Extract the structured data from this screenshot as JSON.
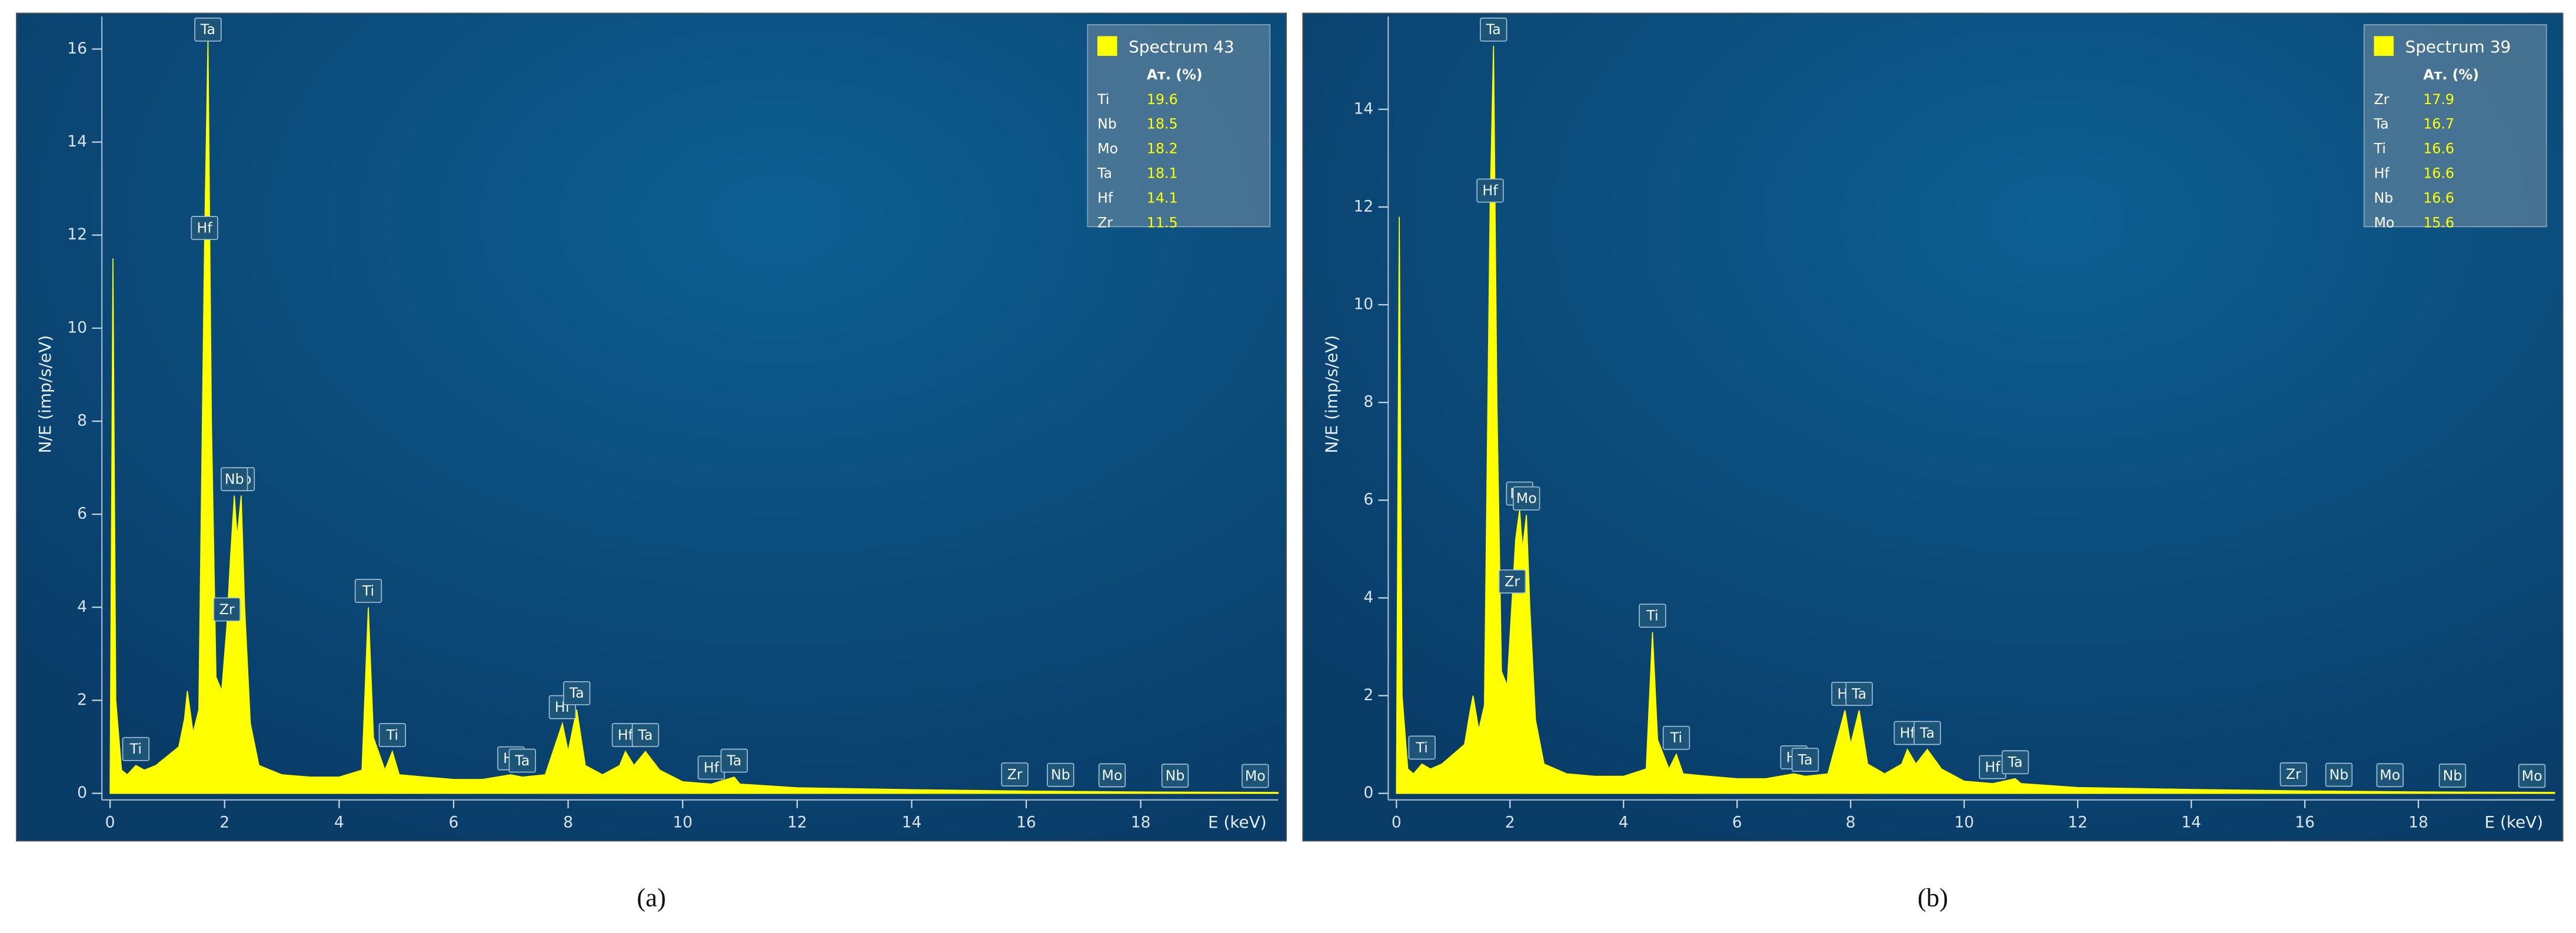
{
  "chart_data": [
    {
      "type": "area",
      "caption": "(a)",
      "y_label": "N/E (imp/s/eV)",
      "x_label": "E (keV)",
      "xlim": [
        0,
        20.4
      ],
      "ylim": [
        0,
        16.7
      ],
      "xticks": [
        0,
        2,
        4,
        6,
        8,
        10,
        12,
        14,
        16,
        18
      ],
      "yticks": [
        0,
        2,
        4,
        6,
        8,
        10,
        12,
        14,
        16
      ],
      "x": [
        0,
        0.05,
        0.1,
        0.2,
        0.3,
        0.45,
        0.6,
        0.8,
        1.0,
        1.2,
        1.3,
        1.35,
        1.45,
        1.55,
        1.65,
        1.71,
        1.77,
        1.85,
        1.95,
        2.04,
        2.1,
        2.17,
        2.22,
        2.29,
        2.35,
        2.45,
        2.6,
        3,
        3.5,
        4,
        4.4,
        4.51,
        4.6,
        4.8,
        4.93,
        5.05,
        5.5,
        6,
        6.5,
        7,
        7.2,
        7.6,
        7.9,
        8.0,
        8.15,
        8.3,
        8.6,
        8.9,
        9.0,
        9.15,
        9.35,
        9.6,
        10,
        10.5,
        10.9,
        11,
        12,
        13,
        14,
        16,
        18,
        20.4
      ],
      "series": [
        {
          "name": "Spectrum 43",
          "color": "#ffff00",
          "values": [
            0,
            11.5,
            2,
            0.5,
            0.4,
            0.6,
            0.5,
            0.6,
            0.8,
            1.0,
            1.6,
            2.2,
            1.3,
            1.8,
            11.8,
            16.2,
            8,
            2.5,
            2.2,
            3.6,
            5,
            6.4,
            5.5,
            6.4,
            4,
            1.5,
            0.6,
            0.4,
            0.35,
            0.35,
            0.5,
            4.0,
            1.2,
            0.5,
            0.9,
            0.4,
            0.35,
            0.3,
            0.3,
            0.4,
            0.35,
            0.4,
            1.5,
            0.9,
            1.8,
            0.6,
            0.4,
            0.6,
            0.9,
            0.6,
            0.9,
            0.5,
            0.25,
            0.2,
            0.35,
            0.2,
            0.12,
            0.1,
            0.08,
            0.05,
            0.03,
            0.02
          ]
        }
      ],
      "annotations": [
        {
          "text": "Ti",
          "x": 0.45
        },
        {
          "text": "Ta",
          "x": 1.71
        },
        {
          "text": "Hf",
          "x": 1.65
        },
        {
          "text": "Mo",
          "x": 2.29
        },
        {
          "text": "Nb",
          "x": 2.17
        },
        {
          "text": "Zr",
          "x": 2.04
        },
        {
          "text": "Ti",
          "x": 4.51
        },
        {
          "text": "Ti",
          "x": 4.93
        },
        {
          "text": "Hf",
          "x": 7.0
        },
        {
          "text": "Ta",
          "x": 7.2
        },
        {
          "text": "Hf",
          "x": 7.9
        },
        {
          "text": "Ta",
          "x": 8.15
        },
        {
          "text": "Hf",
          "x": 9.0
        },
        {
          "text": "Ta",
          "x": 9.35
        },
        {
          "text": "Hf",
          "x": 10.5
        },
        {
          "text": "Ta",
          "x": 10.9
        },
        {
          "text": "Zr",
          "x": 15.8
        },
        {
          "text": "Nb",
          "x": 16.6
        },
        {
          "text": "Mo",
          "x": 17.5
        },
        {
          "text": "Nb",
          "x": 18.6
        },
        {
          "text": "Mo",
          "x": 20.0
        }
      ],
      "legend_table": {
        "header": "Aт. (%)",
        "rows": [
          [
            "Ti",
            "19.6"
          ],
          [
            "Nb",
            "18.5"
          ],
          [
            "Mo",
            "18.2"
          ],
          [
            "Ta",
            "18.1"
          ],
          [
            "Hf",
            "14.1"
          ],
          [
            "Zr",
            "11.5"
          ]
        ]
      }
    },
    {
      "type": "area",
      "caption": "(b)",
      "y_label": "N/E (imp/s/eV)",
      "x_label": "E (keV)",
      "xlim": [
        0,
        20.4
      ],
      "ylim": [
        0,
        15.9
      ],
      "xticks": [
        0,
        2,
        4,
        6,
        8,
        10,
        12,
        14,
        16,
        18
      ],
      "yticks": [
        0,
        2,
        4,
        6,
        8,
        10,
        12,
        14
      ],
      "x": [
        0,
        0.05,
        0.1,
        0.2,
        0.3,
        0.45,
        0.6,
        0.8,
        1.0,
        1.2,
        1.3,
        1.35,
        1.45,
        1.55,
        1.65,
        1.71,
        1.77,
        1.85,
        1.95,
        2.04,
        2.1,
        2.17,
        2.22,
        2.29,
        2.35,
        2.45,
        2.6,
        3,
        3.5,
        4,
        4.4,
        4.51,
        4.6,
        4.8,
        4.93,
        5.05,
        5.5,
        6,
        6.5,
        7,
        7.2,
        7.6,
        7.9,
        8.0,
        8.15,
        8.3,
        8.6,
        8.9,
        9.0,
        9.15,
        9.35,
        9.6,
        10,
        10.5,
        10.9,
        11,
        12,
        13,
        14,
        16,
        18,
        20.4
      ],
      "series": [
        {
          "name": "Spectrum 39",
          "color": "#ffff00",
          "values": [
            0,
            11.8,
            2,
            0.5,
            0.4,
            0.6,
            0.5,
            0.6,
            0.8,
            1.0,
            1.7,
            2.0,
            1.3,
            1.8,
            12.0,
            15.3,
            8,
            2.5,
            2.2,
            4.0,
            5.2,
            5.8,
            5.0,
            5.7,
            3.8,
            1.5,
            0.6,
            0.4,
            0.35,
            0.35,
            0.5,
            3.3,
            1.1,
            0.5,
            0.8,
            0.4,
            0.35,
            0.3,
            0.3,
            0.4,
            0.35,
            0.4,
            1.7,
            1.0,
            1.7,
            0.6,
            0.4,
            0.6,
            0.9,
            0.6,
            0.9,
            0.5,
            0.25,
            0.2,
            0.3,
            0.2,
            0.12,
            0.1,
            0.08,
            0.05,
            0.03,
            0.02
          ]
        }
      ],
      "annotations": [
        {
          "text": "Ti",
          "x": 0.45
        },
        {
          "text": "Ta",
          "x": 1.71
        },
        {
          "text": "Hf",
          "x": 1.65
        },
        {
          "text": "Nb",
          "x": 2.17
        },
        {
          "text": "Zr",
          "x": 2.04
        },
        {
          "text": "Mo",
          "x": 2.29
        },
        {
          "text": "Ti",
          "x": 4.51
        },
        {
          "text": "Ti",
          "x": 4.93
        },
        {
          "text": "Hf",
          "x": 7.0
        },
        {
          "text": "Ta",
          "x": 7.2
        },
        {
          "text": "Hf",
          "x": 7.9
        },
        {
          "text": "Ta",
          "x": 8.15
        },
        {
          "text": "Hf",
          "x": 9.0
        },
        {
          "text": "Ta",
          "x": 9.35
        },
        {
          "text": "Hf",
          "x": 10.5
        },
        {
          "text": "Ta",
          "x": 10.9
        },
        {
          "text": "Zr",
          "x": 15.8
        },
        {
          "text": "Nb",
          "x": 16.6
        },
        {
          "text": "Mo",
          "x": 17.5
        },
        {
          "text": "Nb",
          "x": 18.6
        },
        {
          "text": "Mo",
          "x": 20.0
        }
      ],
      "legend_table": {
        "header": "Aт. (%)",
        "rows": [
          [
            "Zr",
            "17.9"
          ],
          [
            "Ta",
            "16.7"
          ],
          [
            "Ti",
            "16.6"
          ],
          [
            "Hf",
            "16.6"
          ],
          [
            "Nb",
            "16.6"
          ],
          [
            "Mo",
            "15.6"
          ]
        ]
      }
    }
  ]
}
